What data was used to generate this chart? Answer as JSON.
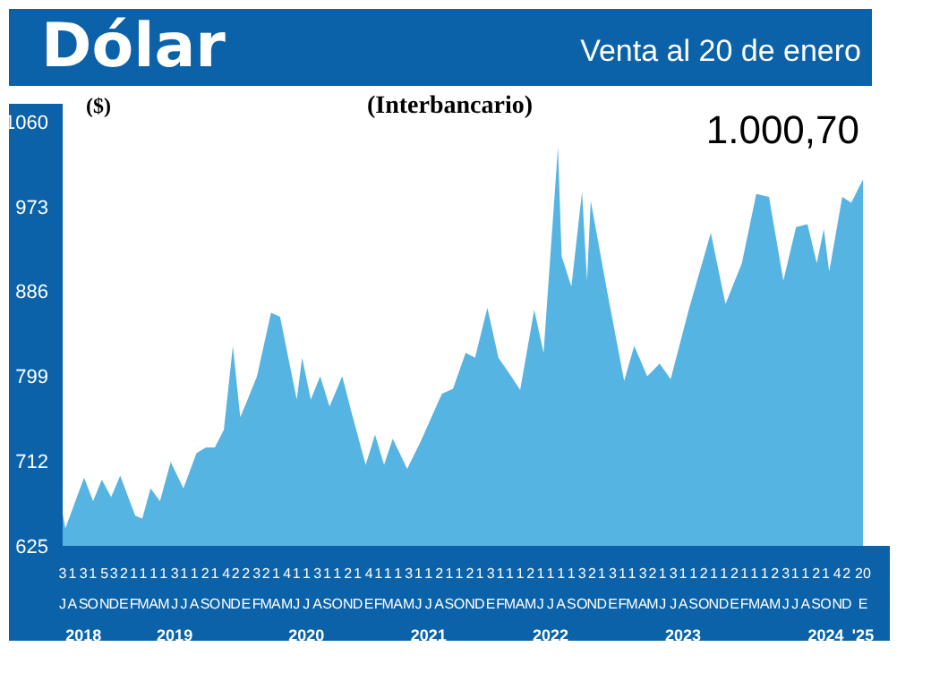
{
  "chart_data": {
    "type": "area",
    "title": "Dólar",
    "subtitle": "Venta al 20 de enero",
    "ylabel": "($)",
    "annotations": [
      "(Interbancario)",
      "1.000,70"
    ],
    "x": [
      "2018-07-03",
      "2018-07-11",
      "2018-09-05",
      "2018-10-02",
      "2018-10-28",
      "2018-11-25",
      "2018-12-22",
      "2019-02-05",
      "2019-02-26",
      "2019-03-23",
      "2019-04-20",
      "2019-05-22",
      "2019-06-29",
      "2019-08-07",
      "2019-09-04",
      "2019-10-01",
      "2019-10-28",
      "2019-11-24",
      "2019-12-16",
      "2020-01-07",
      "2020-02-04",
      "2020-03-17",
      "2020-04-13",
      "2020-06-02",
      "2020-06-18",
      "2020-07-14",
      "2020-08-11",
      "2020-09-08",
      "2020-10-16",
      "2020-11-12",
      "2020-12-25",
      "2021-01-22",
      "2021-02-18",
      "2021-03-16",
      "2021-04-28",
      "2021-06-06",
      "2021-08-10",
      "2021-09-12",
      "2021-10-20",
      "2021-11-17",
      "2021-12-24",
      "2022-01-26",
      "2022-03-03",
      "2022-04-01",
      "2022-05-13",
      "2022-06-10",
      "2022-07-23",
      "2022-08-03",
      "2022-09-01",
      "2022-10-03",
      "2022-10-18",
      "2022-10-29",
      "2022-12-17",
      "2023-02-06",
      "2023-03-08",
      "2023-04-16",
      "2023-05-23",
      "2023-06-25",
      "2023-08-18",
      "2023-10-23",
      "2023-12-06",
      "2024-01-24",
      "2024-03-07",
      "2024-04-14",
      "2024-05-27",
      "2024-07-04",
      "2024-08-07",
      "2024-09-04",
      "2024-09-25",
      "2024-10-11",
      "2024-11-19",
      "2024-12-16",
      "2025-01-20"
    ],
    "values": [
      658,
      643,
      695,
      671,
      693,
      675,
      697,
      656,
      653,
      684,
      671,
      711,
      684,
      720,
      726,
      726,
      744,
      830,
      757,
      775,
      799,
      864,
      860,
      775,
      818,
      775,
      799,
      768,
      799,
      763,
      708,
      739,
      708,
      735,
      704,
      731,
      781,
      786,
      823,
      818,
      869,
      818,
      800,
      785,
      867,
      823,
      1034,
      922,
      891,
      988,
      897,
      979,
      886,
      794,
      830,
      799,
      812,
      796,
      867,
      946,
      873,
      915,
      986,
      983,
      897,
      952,
      955,
      915,
      950,
      906,
      983,
      977,
      1000.7
    ],
    "color": "#56b4e3",
    "ylim": [
      625,
      1060
    ],
    "yticks": [
      625,
      712,
      799,
      886,
      973,
      1060
    ],
    "xlim": [
      "2018-07-03",
      "2025-01-20"
    ],
    "xticks": [
      {
        "value": "2018-07-03",
        "label": "3\nJ"
      },
      {
        "value": "2018-08-01",
        "label": "1\nA"
      },
      {
        "value": "2018-09-03",
        "label": "3\nS\n2018"
      },
      {
        "value": "2018-10-01",
        "label": "1\nO"
      },
      {
        "value": "2018-11-05",
        "label": "5\nN"
      },
      {
        "value": "2018-12-03",
        "label": "3\nD"
      },
      {
        "value": "2019-01-02",
        "label": "2\nE"
      },
      {
        "value": "2019-02-01",
        "label": "1\nF"
      },
      {
        "value": "2019-03-01",
        "label": "1\nM"
      },
      {
        "value": "2019-04-01",
        "label": "1\nA"
      },
      {
        "value": "2019-05-01",
        "label": "1\nM"
      },
      {
        "value": "2019-06-03",
        "label": "3\nJ\n2019"
      },
      {
        "value": "2019-07-01",
        "label": "1\nJ"
      },
      {
        "value": "2019-08-01",
        "label": "1\nA"
      },
      {
        "value": "2019-09-02",
        "label": "2\nS"
      },
      {
        "value": "2019-10-01",
        "label": "1\nO"
      },
      {
        "value": "2019-11-04",
        "label": "4\nN"
      },
      {
        "value": "2019-12-02",
        "label": "2\nD"
      },
      {
        "value": "2020-01-02",
        "label": "2\nE"
      },
      {
        "value": "2020-02-03",
        "label": "3\nF"
      },
      {
        "value": "2020-03-02",
        "label": "2\nM"
      },
      {
        "value": "2020-04-01",
        "label": "1\nA"
      },
      {
        "value": "2020-05-04",
        "label": "4\nM"
      },
      {
        "value": "2020-06-01",
        "label": "1\nJ"
      },
      {
        "value": "2020-07-01",
        "label": "1\nJ\n2020"
      },
      {
        "value": "2020-08-03",
        "label": "3\nA"
      },
      {
        "value": "2020-09-01",
        "label": "1\nS"
      },
      {
        "value": "2020-10-01",
        "label": "1\nO"
      },
      {
        "value": "2020-11-02",
        "label": "2\nN"
      },
      {
        "value": "2020-12-01",
        "label": "1\nD"
      },
      {
        "value": "2021-01-04",
        "label": "4\nE"
      },
      {
        "value": "2021-02-01",
        "label": "1\nF"
      },
      {
        "value": "2021-03-01",
        "label": "1\nM"
      },
      {
        "value": "2021-04-01",
        "label": "1\nA"
      },
      {
        "value": "2021-05-03",
        "label": "3\nM"
      },
      {
        "value": "2021-06-01",
        "label": "1\nJ"
      },
      {
        "value": "2021-07-01",
        "label": "1\nJ\n2021"
      },
      {
        "value": "2021-08-02",
        "label": "2\nA"
      },
      {
        "value": "2021-09-01",
        "label": "1\nS"
      },
      {
        "value": "2021-10-01",
        "label": "1\nO"
      },
      {
        "value": "2021-11-02",
        "label": "2\nN"
      },
      {
        "value": "2021-12-01",
        "label": "1\nD"
      },
      {
        "value": "2022-01-03",
        "label": "3\nE"
      },
      {
        "value": "2022-02-01",
        "label": "1\nF"
      },
      {
        "value": "2022-03-01",
        "label": "1\nM"
      },
      {
        "value": "2022-04-01",
        "label": "1\nA"
      },
      {
        "value": "2022-05-02",
        "label": "2\nM"
      },
      {
        "value": "2022-06-01",
        "label": "1\nJ"
      },
      {
        "value": "2022-07-01",
        "label": "1\nJ\n2022"
      },
      {
        "value": "2022-08-01",
        "label": "1\nA"
      },
      {
        "value": "2022-09-01",
        "label": "1\nS"
      },
      {
        "value": "2022-10-03",
        "label": "3\nO"
      },
      {
        "value": "2022-11-02",
        "label": "2\nN"
      },
      {
        "value": "2022-12-01",
        "label": "1\nD"
      },
      {
        "value": "2023-01-03",
        "label": "3\nE"
      },
      {
        "value": "2023-02-01",
        "label": "1\nF"
      },
      {
        "value": "2023-03-01",
        "label": "1\nM"
      },
      {
        "value": "2023-04-03",
        "label": "3\nA"
      },
      {
        "value": "2023-05-02",
        "label": "2\nM"
      },
      {
        "value": "2023-06-01",
        "label": "1\nJ"
      },
      {
        "value": "2023-07-03",
        "label": "3\nJ"
      },
      {
        "value": "2023-08-01",
        "label": "1\nA\n2023"
      },
      {
        "value": "2023-09-01",
        "label": "1\nS"
      },
      {
        "value": "2023-10-02",
        "label": "2\nO"
      },
      {
        "value": "2023-11-01",
        "label": "1\nN"
      },
      {
        "value": "2023-12-01",
        "label": "1\nD"
      },
      {
        "value": "2024-01-02",
        "label": "2\nE"
      },
      {
        "value": "2024-02-01",
        "label": "1\nF"
      },
      {
        "value": "2024-03-01",
        "label": "1\nM"
      },
      {
        "value": "2024-04-01",
        "label": "1\nA"
      },
      {
        "value": "2024-05-02",
        "label": "2\nM"
      },
      {
        "value": "2024-06-03",
        "label": "3\nJ"
      },
      {
        "value": "2024-07-01",
        "label": "1\nJ"
      },
      {
        "value": "2024-08-01",
        "label": "1\nA"
      },
      {
        "value": "2024-09-02",
        "label": "2\nS"
      },
      {
        "value": "2024-10-01",
        "label": "1\nO\n2024"
      },
      {
        "value": "2024-11-04",
        "label": "4\nN"
      },
      {
        "value": "2024-12-02",
        "label": "2\nD"
      },
      {
        "value": "2025-01-20",
        "label": "20\nE\n'25"
      }
    ],
    "grid": false,
    "legend": false
  }
}
